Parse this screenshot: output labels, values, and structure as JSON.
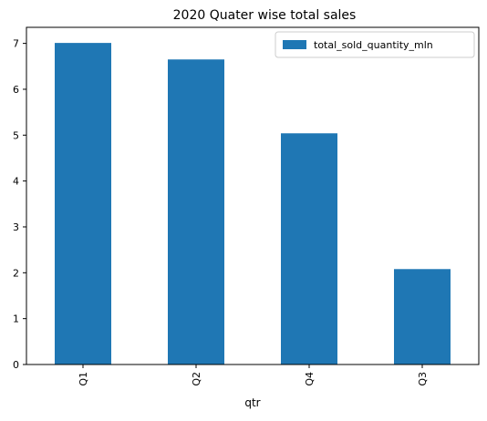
{
  "chart_data": {
    "type": "bar",
    "title": "2020 Quater wise total sales",
    "xlabel": "qtr",
    "ylabel": "",
    "categories": [
      "Q1",
      "Q2",
      "Q4",
      "Q3"
    ],
    "series": [
      {
        "name": "total_sold_quantity_mln",
        "values": [
          7.01,
          6.65,
          5.04,
          2.08
        ],
        "color": "#1f77b4"
      }
    ],
    "ylim": [
      0,
      7.35
    ],
    "yticks": [
      0,
      1,
      2,
      3,
      4,
      5,
      6,
      7
    ],
    "grid": false,
    "legend_position": "top-right"
  }
}
